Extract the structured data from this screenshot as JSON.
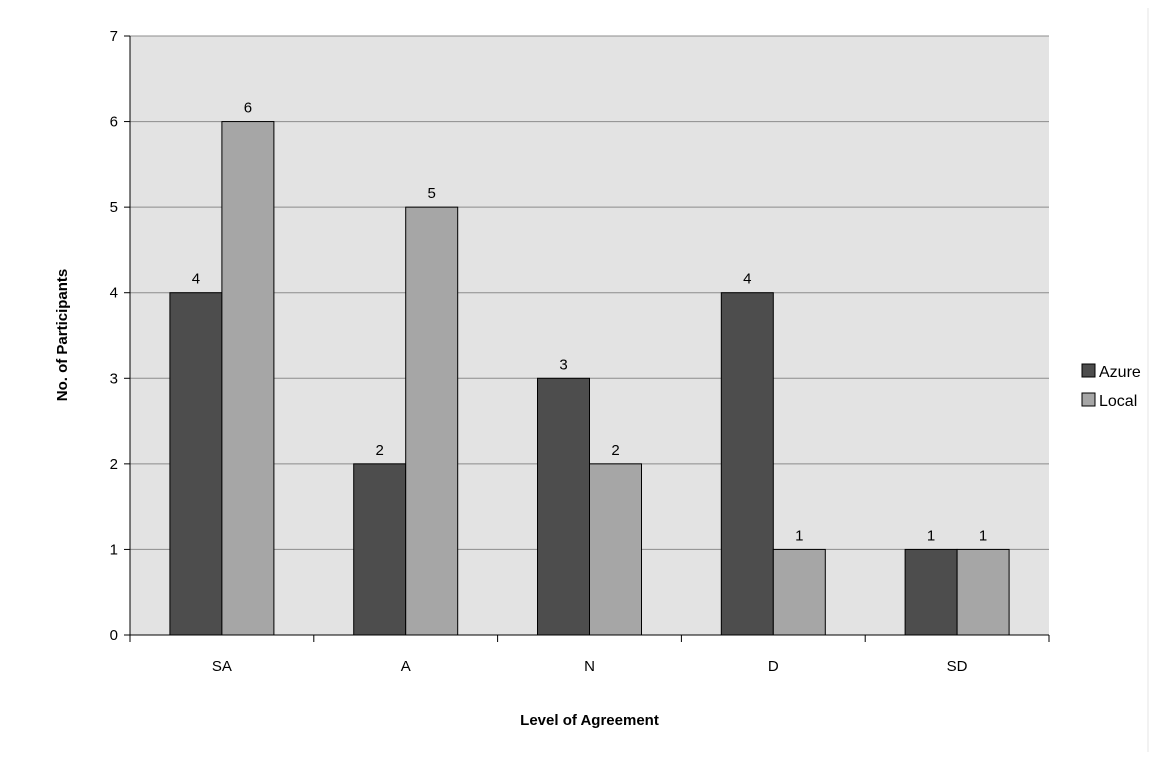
{
  "chart_data": {
    "type": "bar",
    "title": "",
    "xlabel": "Level of Agreement",
    "ylabel": "No. of Participants",
    "categories": [
      "SA",
      "A",
      "N",
      "D",
      "SD"
    ],
    "series": [
      {
        "name": "Azure",
        "values": [
          4,
          2,
          3,
          4,
          1
        ],
        "color": "#4d4d4d"
      },
      {
        "name": "Local",
        "values": [
          6,
          5,
          2,
          1,
          1
        ],
        "color": "#a6a6a6"
      }
    ],
    "ylim": [
      0,
      7
    ],
    "yticks": [
      "0",
      "1",
      "2",
      "3",
      "4",
      "5",
      "6",
      "7"
    ],
    "grid": true,
    "legend": "right",
    "plot_background": "#e3e3e3"
  }
}
